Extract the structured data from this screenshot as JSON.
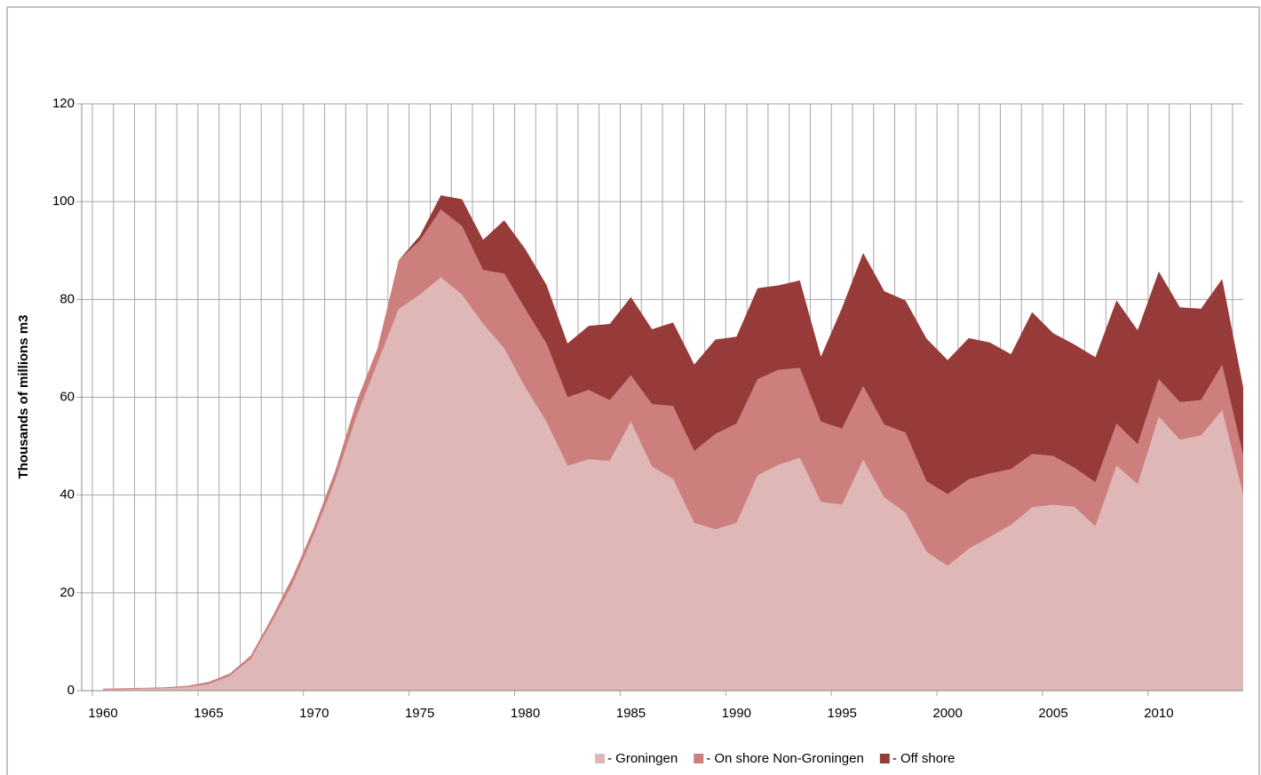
{
  "chart_data": {
    "type": "stacked_area",
    "y_axis_label": "Thousands of millions m3",
    "x": [
      1960,
      1961,
      1962,
      1963,
      1964,
      1965,
      1966,
      1967,
      1968,
      1969,
      1970,
      1971,
      1972,
      1973,
      1974,
      1975,
      1976,
      1977,
      1978,
      1979,
      1980,
      1981,
      1982,
      1983,
      1984,
      1985,
      1986,
      1987,
      1988,
      1989,
      1990,
      1991,
      1992,
      1993,
      1994,
      1995,
      1996,
      1997,
      1998,
      1999,
      2000,
      2001,
      2002,
      2003,
      2004,
      2005,
      2006,
      2007,
      2008,
      2009,
      2010,
      2011,
      2012,
      2013,
      2014
    ],
    "series": [
      {
        "name": "- Groningen",
        "color": "#dfb7b7",
        "values": [
          0.2,
          0.3,
          0.4,
          0.5,
          0.7,
          1.3,
          3,
          6.5,
          14,
          22,
          32,
          43,
          56,
          67,
          78,
          81,
          84.5,
          81,
          75,
          70,
          62,
          55,
          46,
          47.3,
          47,
          55,
          45.8,
          43.3,
          34.3,
          33,
          34.3,
          44,
          46.2,
          47.6,
          38.6,
          38,
          47.2,
          39.5,
          36.4,
          28.4,
          25.5,
          29,
          31.4,
          33.9,
          37.5,
          38,
          37.6,
          33.6,
          46,
          42.2,
          56,
          51.3,
          52.2,
          57.3,
          40
        ]
      },
      {
        "name": "- On shore Non-Groningen",
        "color": "#cd7f7e",
        "values": [
          0.2,
          0.2,
          0.2,
          0.2,
          0.3,
          0.5,
          0.5,
          0.7,
          1,
          1.5,
          1.5,
          2,
          3,
          3,
          10,
          11,
          13.9,
          14,
          11,
          15.3,
          16,
          16,
          14,
          14.2,
          12.4,
          9.5,
          12.8,
          14.9,
          14.7,
          19.5,
          20.3,
          19.7,
          19.4,
          18.4,
          16.4,
          15.6,
          15.1,
          14.9,
          16.4,
          14.4,
          14.7,
          14.2,
          13,
          11.4,
          10.9,
          10,
          8,
          9,
          8.6,
          8.2,
          7.7,
          7.7,
          7.2,
          9.3,
          8
        ]
      },
      {
        "name": "- Off shore",
        "color": "#973b3a",
        "values": [
          0,
          0,
          0,
          0,
          0,
          0,
          0,
          0,
          0,
          0,
          0,
          0,
          0,
          0,
          0,
          1,
          2.9,
          5.5,
          6.2,
          10.9,
          12.3,
          12,
          11,
          13.1,
          15.6,
          16,
          15.3,
          17.1,
          17.7,
          19.3,
          17.8,
          18.6,
          17.3,
          17.9,
          13.3,
          24.7,
          27.2,
          27.3,
          27,
          29.2,
          27.4,
          28.9,
          26.8,
          23.5,
          29,
          25.1,
          25.2,
          25.6,
          25.2,
          23.3,
          22,
          19.4,
          18.7,
          17.6,
          14
        ]
      }
    ],
    "xlim": [
      1960,
      2014
    ],
    "xticks": [
      1960,
      1965,
      1970,
      1975,
      1980,
      1985,
      1990,
      1995,
      2000,
      2005,
      2010
    ],
    "ylim": [
      0,
      120
    ],
    "yticks": [
      0,
      20,
      40,
      60,
      80,
      100,
      120
    ],
    "grid": true,
    "legend": "bottom"
  }
}
